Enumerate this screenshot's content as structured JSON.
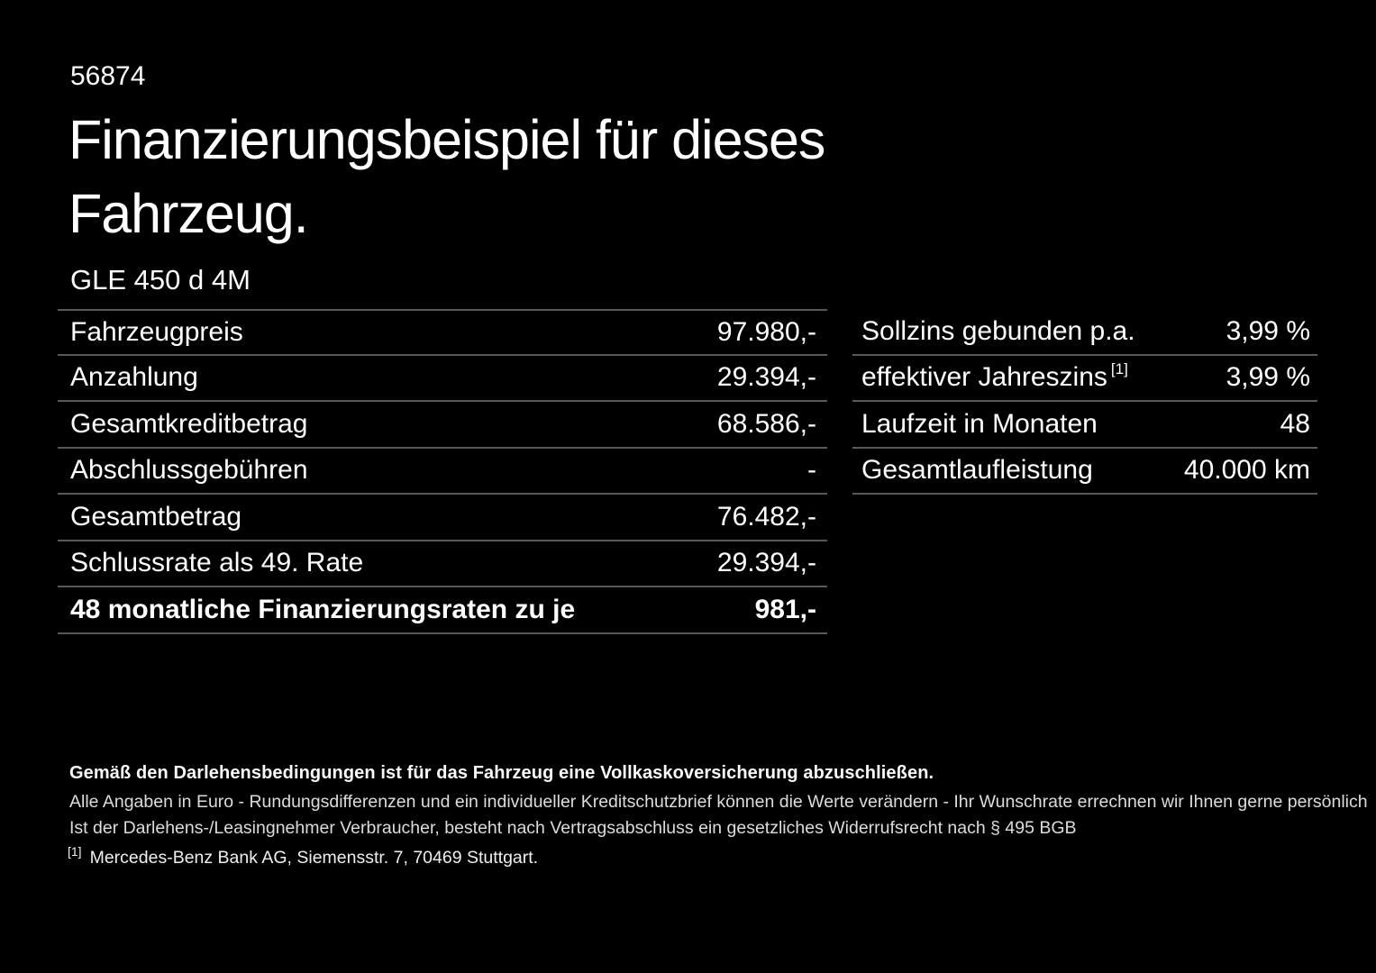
{
  "page": {
    "stock_number": "56874",
    "title_line1": "Finanzierungsbeispiel für dieses",
    "title_line2": "Fahrzeug.",
    "vehicle_model": "GLE 450 d 4M"
  },
  "financing_table": {
    "rows": [
      {
        "label": "Fahrzeugpreis",
        "value": "97.980,-"
      },
      {
        "label": "Anzahlung",
        "value": "29.394,-"
      },
      {
        "label": "Gesamtkreditbetrag",
        "value": "68.586,-"
      },
      {
        "label": "Abschlussgebühren",
        "value": "-"
      },
      {
        "label": "Gesamtbetrag",
        "value": "76.482,-"
      },
      {
        "label": "Schlussrate als 49. Rate",
        "value": "29.394,-"
      },
      {
        "label": "48 monatliche Finanzierungsraten zu je",
        "value": "981,-"
      }
    ]
  },
  "conditions_table": {
    "rows": [
      {
        "label": "Sollzins gebunden p.a.",
        "value": "3,99 %"
      },
      {
        "label": "effektiver Jahreszins",
        "footnote_marker": "[1]",
        "value": "3,99 %"
      },
      {
        "label": "Laufzeit in Monaten",
        "value": "48"
      },
      {
        "label": "Gesamtlaufleistung",
        "value": "40.000 km"
      }
    ]
  },
  "disclaimer": {
    "bold_line": "Gemäß den Darlehensbedingungen ist für das Fahrzeug eine Vollkaskoversicherung abzuschließen.",
    "line2": "Alle Angaben in Euro - Rundungsdifferenzen und ein individueller Kreditschutzbrief können die Werte verändern - Ihr Wunschrate errechnen wir Ihnen gerne persönlich",
    "line3": "Ist der Darlehens-/Leasingnehmer Verbraucher, besteht nach Vertragsabschluss ein gesetzliches Widerrufsrecht nach § 495 BGB",
    "footnote_marker": "[1]",
    "footnote_text": "Mercedes-Benz Bank AG, Siemensstr. 7, 70469 Stuttgart."
  },
  "colors": {
    "background": "#000000",
    "text": "#ffffff",
    "divider": "#585858"
  }
}
